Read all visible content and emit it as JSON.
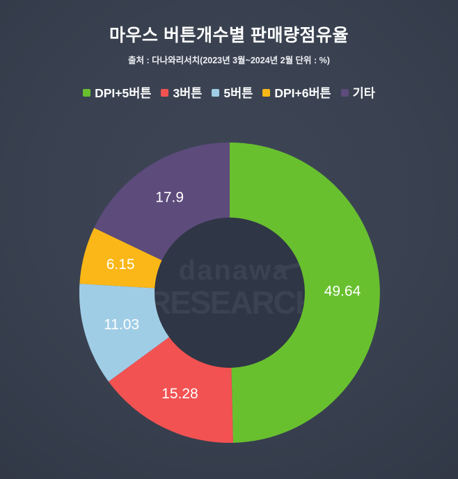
{
  "header": {
    "title": "마우스 버튼개수별 판매량점유율",
    "subtitle": "출처 : 다나와리서치(2023년 3월~2024년 2월 단위 : %)"
  },
  "watermark": {
    "brand": "danawa",
    "brand_sub": "RESEARCH"
  },
  "colors": {
    "background": "#394150",
    "hole": "#2f3645",
    "label_text": "#ffffff"
  },
  "chart_data": {
    "type": "pie",
    "donut": true,
    "title": "마우스 버튼개수별 판매량점유율",
    "unit": "%",
    "start_angle_deg": 0,
    "direction": "clockwise",
    "legend_position": "top",
    "series": [
      {
        "name": "DPI+5버튼",
        "value": 49.64,
        "label": "49.64",
        "color": "#68c02f"
      },
      {
        "name": "3버튼",
        "value": 15.28,
        "label": "15.28",
        "color": "#f25252"
      },
      {
        "name": "5버튼",
        "value": 11.03,
        "label": "11.03",
        "color": "#a0cde6"
      },
      {
        "name": "DPI+6버튼",
        "value": 6.15,
        "label": "6.15",
        "color": "#fbb717"
      },
      {
        "name": "기타",
        "value": 17.9,
        "label": "17.9",
        "color": "#5d4b7c"
      }
    ]
  }
}
